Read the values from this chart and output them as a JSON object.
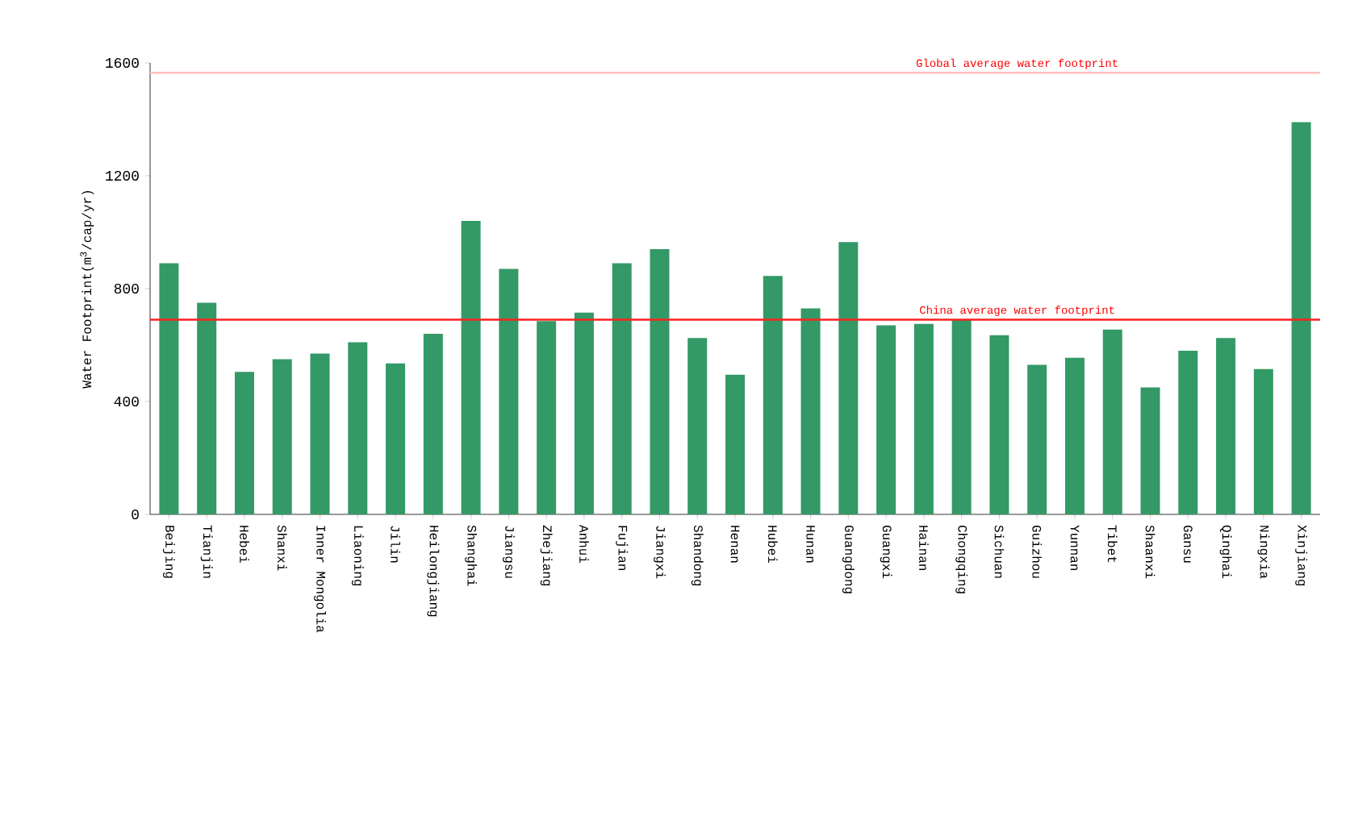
{
  "chart_data": {
    "type": "bar",
    "ylabel": "Water Footprint(m$^{3}$/cap/yr)",
    "categories": [
      "Beijing",
      "Tianjin",
      "Hebei",
      "Shanxi",
      "Inner Mongolia",
      "Liaoning",
      "Jilin",
      "Heilongjiang",
      "Shanghai",
      "Jiangsu",
      "Zhejiang",
      "Anhui",
      "Fujian",
      "Jiangxi",
      "Shandong",
      "Henan",
      "Hubei",
      "Hunan",
      "Guangdong",
      "Guangxi",
      "Hainan",
      "Chongqing",
      "Sichuan",
      "Guizhou",
      "Yunnan",
      "Tibet",
      "Shaanxi",
      "Gansu",
      "Qinghai",
      "Ningxia",
      "Xinjiang"
    ],
    "values": [
      890,
      750,
      505,
      550,
      570,
      610,
      535,
      640,
      1040,
      870,
      685,
      715,
      890,
      940,
      625,
      495,
      845,
      730,
      965,
      670,
      675,
      690,
      635,
      530,
      555,
      655,
      450,
      580,
      625,
      515,
      1390
    ],
    "color": "#339966",
    "ylim": [
      0,
      1600
    ],
    "yticks": [
      0,
      400,
      800,
      1200,
      1600
    ],
    "ref_lines": [
      {
        "axis": "y",
        "value": 1565,
        "label": "Global average water footprint",
        "color": "#ffc0c0"
      },
      {
        "axis": "y",
        "value": 690,
        "label": "China average water footprint",
        "color": "#ff2020"
      }
    ]
  }
}
